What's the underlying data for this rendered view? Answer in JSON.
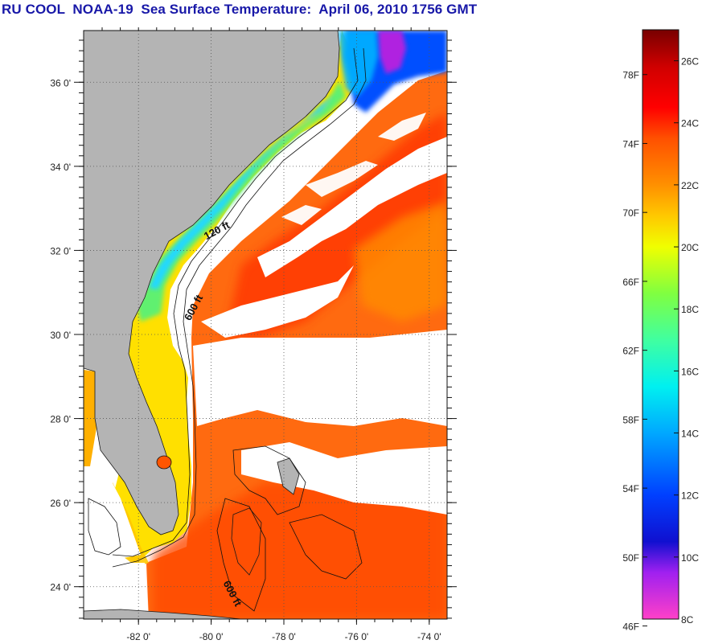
{
  "title": "RU COOL  NOAA-19  Sea Surface Temperature:  April 06, 2010 1756 GMT",
  "map": {
    "lon_range": [
      -83,
      -73
    ],
    "lat_range": [
      23,
      37
    ],
    "lon_ticks": [
      {
        "value": -82,
        "label": "-82 0'"
      },
      {
        "value": -80,
        "label": "-80 0'"
      },
      {
        "value": -78,
        "label": "-78 0'"
      },
      {
        "value": -76,
        "label": "-76 0'"
      },
      {
        "value": -74,
        "label": "-74 0'"
      }
    ],
    "lat_ticks": [
      {
        "value": 24,
        "label": "24 0'"
      },
      {
        "value": 26,
        "label": "26 0'"
      },
      {
        "value": 28,
        "label": "28 0'"
      },
      {
        "value": 30,
        "label": "30 0'"
      },
      {
        "value": 32,
        "label": "32 0'"
      },
      {
        "value": 34,
        "label": "34 0'"
      },
      {
        "value": 36,
        "label": "36 0'"
      }
    ],
    "contour_labels": [
      {
        "text": "120 ft",
        "lon": -79.8,
        "lat": 32.4,
        "rotate": -28
      },
      {
        "text": "600 ft",
        "lon": -80.4,
        "lat": 30.6,
        "rotate": -62
      },
      {
        "text": "600 ft",
        "lon": -79.5,
        "lat": 23.8,
        "rotate": 62
      }
    ],
    "land_color": "#b4b4b4",
    "cloud_color": "#ffffff"
  },
  "colorbar": {
    "range_c": [
      8,
      27
    ],
    "celsius_ticks": [
      {
        "value": 8,
        "label": "8C"
      },
      {
        "value": 10,
        "label": "10C"
      },
      {
        "value": 12,
        "label": "12C"
      },
      {
        "value": 14,
        "label": "14C"
      },
      {
        "value": 16,
        "label": "16C"
      },
      {
        "value": 18,
        "label": "18C"
      },
      {
        "value": 20,
        "label": "20C"
      },
      {
        "value": 22,
        "label": "22C"
      },
      {
        "value": 24,
        "label": "24C"
      },
      {
        "value": 26,
        "label": "26C"
      }
    ],
    "fahrenheit_ticks": [
      {
        "value": 46,
        "label": "46F"
      },
      {
        "value": 50,
        "label": "50F"
      },
      {
        "value": 54,
        "label": "54F"
      },
      {
        "value": 58,
        "label": "58F"
      },
      {
        "value": 62,
        "label": "62F"
      },
      {
        "value": 66,
        "label": "66F"
      },
      {
        "value": 70,
        "label": "70F"
      },
      {
        "value": 74,
        "label": "74F"
      },
      {
        "value": 78,
        "label": "78F"
      }
    ],
    "stops": [
      {
        "c": 8,
        "color": "#ff40c8"
      },
      {
        "c": 9.5,
        "color": "#a020f0"
      },
      {
        "c": 10.5,
        "color": "#1010d0"
      },
      {
        "c": 12,
        "color": "#0040ff"
      },
      {
        "c": 14,
        "color": "#00a8ff"
      },
      {
        "c": 15.5,
        "color": "#00f0f0"
      },
      {
        "c": 17,
        "color": "#40ffa0"
      },
      {
        "c": 18.5,
        "color": "#80ff40"
      },
      {
        "c": 20,
        "color": "#f0ff00"
      },
      {
        "c": 21,
        "color": "#ffc800"
      },
      {
        "c": 22,
        "color": "#ff9000"
      },
      {
        "c": 23.5,
        "color": "#ff5000"
      },
      {
        "c": 24.5,
        "color": "#ff0000"
      },
      {
        "c": 25.8,
        "color": "#d00000"
      },
      {
        "c": 27,
        "color": "#780000"
      }
    ]
  }
}
